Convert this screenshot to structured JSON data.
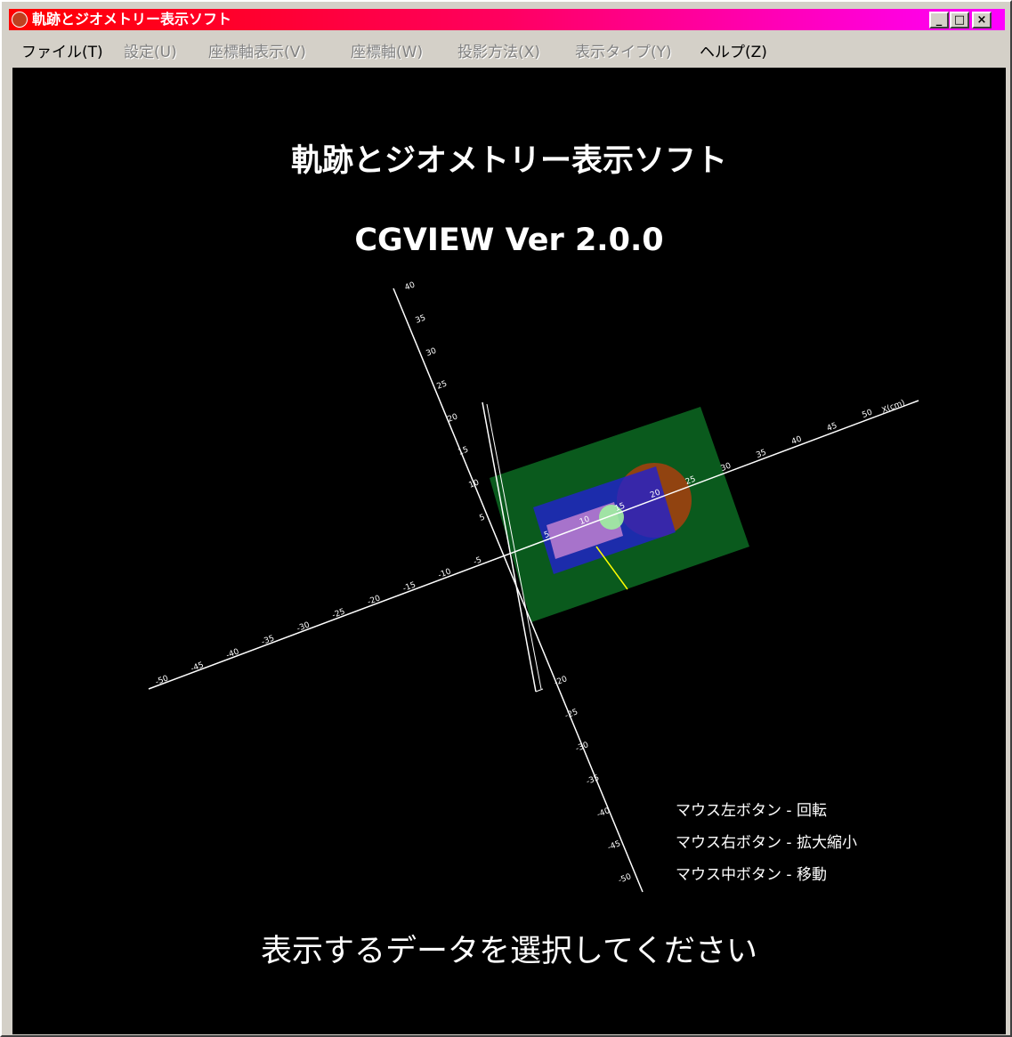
{
  "window": {
    "title": "軌跡とジオメトリー表示ソフト"
  },
  "menu": [
    {
      "label": "ファイル(T)",
      "enabled": true
    },
    {
      "label": "設定(U)",
      "enabled": false
    },
    {
      "label": "座標軸表示(V)",
      "enabled": false
    },
    {
      "label": "座標軸(W)",
      "enabled": false
    },
    {
      "label": "投影方法(X)",
      "enabled": false
    },
    {
      "label": "表示タイプ(Y)",
      "enabled": false
    },
    {
      "label": "ヘルプ(Z)",
      "enabled": true
    }
  ],
  "view": {
    "title": "軌跡とジオメトリー表示ソフト",
    "version": "CGVIEW Ver 2.0.0",
    "hints": [
      "マウス左ボタン - 回転",
      "マウス右ボタン - 拡大縮小",
      "マウス中ボタン - 移動"
    ],
    "prompt": "表示するデータを選択してください"
  },
  "axes": {
    "x_labels": [
      "-50",
      "-45",
      "-40",
      "-35",
      "-30",
      "-25",
      "-20",
      "-15",
      "-10",
      "-5",
      "5",
      "10",
      "15",
      "20",
      "25",
      "30",
      "35",
      "40",
      "45",
      "50"
    ],
    "x_unit": "X(cm)",
    "y_labels": [
      "40",
      "35",
      "30",
      "25",
      "20",
      "15",
      "10",
      "5",
      "-20",
      "-25",
      "-30",
      "-35",
      "-40",
      "-45",
      "-50"
    ]
  }
}
